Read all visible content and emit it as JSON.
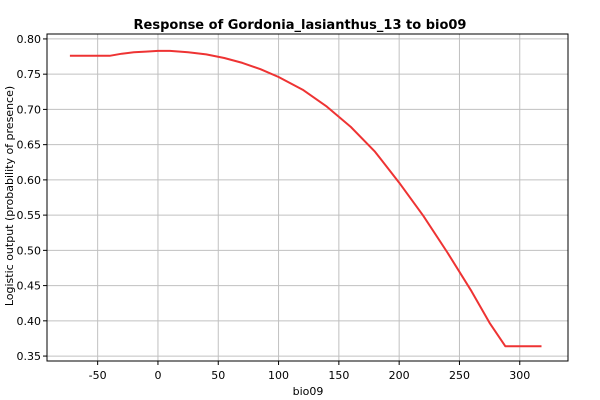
{
  "chart_data": {
    "type": "line",
    "title": "Response of Gordonia_lasianthus_13 to bio09",
    "xlabel": "bio09",
    "ylabel": "Logistic output (probability of presence)",
    "xlim": [
      -92,
      340
    ],
    "ylim": [
      0.343,
      0.807
    ],
    "x_ticks": [
      -50,
      0,
      50,
      100,
      150,
      200,
      250,
      300
    ],
    "y_ticks": [
      0.35,
      0.4,
      0.45,
      0.5,
      0.55,
      0.6,
      0.65,
      0.7,
      0.75,
      0.8
    ],
    "x_tick_labels": [
      "-50",
      "0",
      "50",
      "100",
      "150",
      "200",
      "250",
      "300"
    ],
    "y_tick_labels": [
      "0.35",
      "0.40",
      "0.45",
      "0.50",
      "0.55",
      "0.60",
      "0.65",
      "0.70",
      "0.75",
      "0.80"
    ],
    "grid": true,
    "series": [
      {
        "color": "#ee3333",
        "x": [
          -73,
          -40,
          -30,
          -20,
          -10,
          0,
          10,
          25,
          40,
          55,
          70,
          85,
          100,
          120,
          140,
          160,
          180,
          200,
          220,
          240,
          260,
          275,
          288,
          300,
          318
        ],
        "y": [
          0.776,
          0.776,
          0.779,
          0.781,
          0.782,
          0.783,
          0.783,
          0.781,
          0.778,
          0.773,
          0.766,
          0.757,
          0.746,
          0.728,
          0.704,
          0.675,
          0.64,
          0.596,
          0.549,
          0.497,
          0.442,
          0.397,
          0.364,
          0.364,
          0.364
        ]
      }
    ]
  }
}
